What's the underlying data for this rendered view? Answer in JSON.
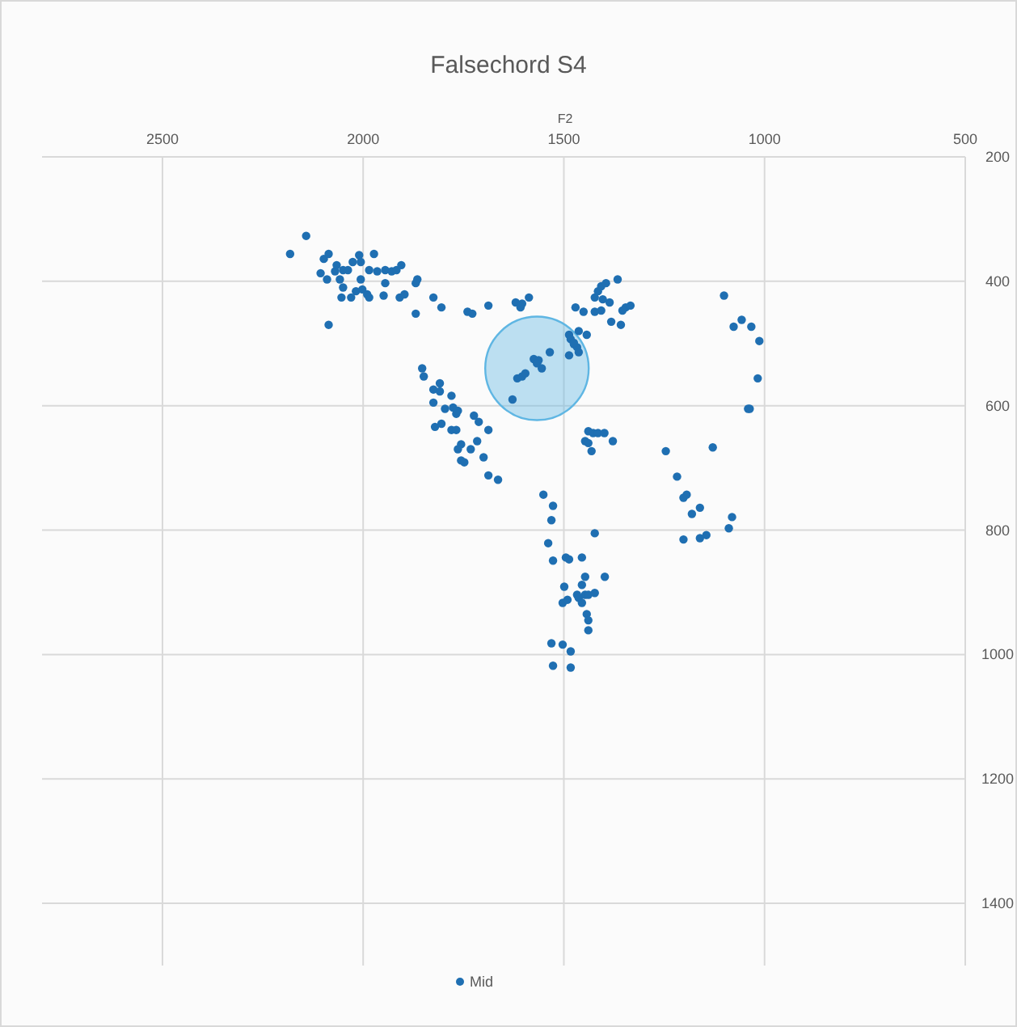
{
  "chart_data": {
    "type": "scatter",
    "title": "Falsechord S4",
    "xlabel": "F2",
    "xlim": [
      2800,
      500
    ],
    "xticks": [
      2500,
      2000,
      1500,
      1000,
      500
    ],
    "ylim": [
      1500,
      200
    ],
    "yticks": [
      200,
      400,
      600,
      800,
      1000,
      1200,
      1400
    ],
    "grid": true,
    "legend": "bottom",
    "marker": "circle",
    "series": [
      {
        "type": "bubble",
        "color": "#5fb6e3",
        "x": [
          1567
        ],
        "values": [
          540
        ],
        "sizes": [
          1
        ]
      },
      {
        "name": "Mid",
        "color": "#1f6fb2",
        "x": [
          2182,
          2142,
          2098,
          2086,
          2106,
          2090,
          2070,
          2066,
          2050,
          2038,
          2026,
          2010,
          2006,
          1973,
          1985,
          1965,
          1945,
          1929,
          1917,
          1905,
          2058,
          2006,
          1945,
          1865,
          1869,
          2050,
          2018,
          2002,
          1990,
          2054,
          2030,
          1985,
          1949,
          1909,
          1897,
          2086,
          1869,
          1825,
          1805,
          1740,
          1728,
          1688,
          1620,
          1608,
          1604,
          1587,
          1471,
          1451,
          1423,
          1415,
          1407,
          1395,
          1366,
          1403,
          1386,
          1423,
          1407,
          1346,
          1334,
          1354,
          1382,
          1358,
          1487,
          1483,
          1475,
          1463,
          1443,
          1487,
          1467,
          1463,
          1475,
          1535,
          1575,
          1563,
          1555,
          1567,
          1604,
          1616,
          1596,
          1628,
          1101,
          1077,
          1057,
          1033,
          1013,
          1017,
          1041,
          1037,
          1853,
          1849,
          1825,
          1809,
          1809,
          1825,
          1796,
          1780,
          1776,
          1768,
          1764,
          1805,
          1821,
          1780,
          1768,
          1724,
          1712,
          1688,
          1716,
          1756,
          1764,
          1732,
          1700,
          1756,
          1748,
          1688,
          1664,
          1551,
          1527,
          1531,
          1539,
          1439,
          1427,
          1415,
          1399,
          1447,
          1439,
          1431,
          1378,
          1246,
          1129,
          1218,
          1202,
          1194,
          1181,
          1161,
          1202,
          1161,
          1145,
          1089,
          1081,
          1423,
          1527,
          1495,
          1487,
          1455,
          1499,
          1455,
          1447,
          1398,
          1503,
          1491,
          1467,
          1463,
          1455,
          1447,
          1439,
          1423,
          1443,
          1439,
          1439,
          1531,
          1503,
          1483,
          1527,
          1483
        ],
        "values": [
          356,
          327,
          364,
          356,
          387,
          397,
          384,
          374,
          382,
          382,
          369,
          358,
          369,
          356,
          382,
          384,
          382,
          384,
          382,
          374,
          397,
          397,
          403,
          397,
          403,
          410,
          416,
          413,
          421,
          426,
          426,
          426,
          423,
          426,
          421,
          470,
          452,
          426,
          442,
          449,
          452,
          439,
          434,
          442,
          436,
          426,
          442,
          449,
          426,
          416,
          408,
          403,
          397,
          429,
          434,
          449,
          447,
          442,
          439,
          447,
          465,
          470,
          486,
          493,
          501,
          480,
          486,
          519,
          506,
          514,
          499,
          514,
          525,
          527,
          540,
          532,
          553,
          556,
          548,
          590,
          423,
          473,
          462,
          473,
          496,
          556,
          605,
          605,
          540,
          553,
          574,
          564,
          577,
          595,
          605,
          584,
          603,
          613,
          608,
          629,
          634,
          639,
          639,
          616,
          626,
          639,
          657,
          662,
          670,
          670,
          683,
          688,
          691,
          712,
          719,
          743,
          761,
          784,
          821,
          641,
          644,
          644,
          644,
          657,
          660,
          673,
          657,
          673,
          667,
          714,
          748,
          743,
          774,
          764,
          815,
          813,
          808,
          797,
          779,
          805,
          849,
          844,
          847,
          844,
          891,
          888,
          875,
          875,
          917,
          912,
          904,
          909,
          917,
          904,
          904,
          901,
          935,
          945,
          961,
          982,
          984,
          995,
          1018,
          1021
        ]
      }
    ]
  }
}
